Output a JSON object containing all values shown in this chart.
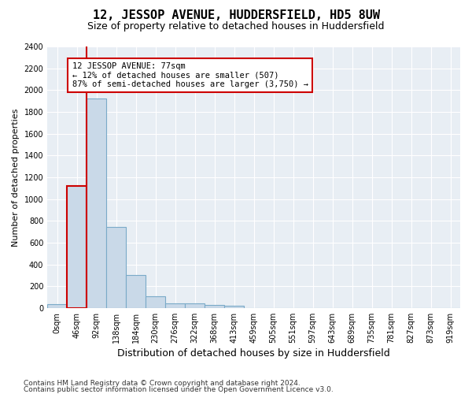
{
  "title": "12, JESSOP AVENUE, HUDDERSFIELD, HD5 8UW",
  "subtitle": "Size of property relative to detached houses in Huddersfield",
  "xlabel": "Distribution of detached houses by size in Huddersfield",
  "ylabel": "Number of detached properties",
  "footer_line1": "Contains HM Land Registry data © Crown copyright and database right 2024.",
  "footer_line2": "Contains public sector information licensed under the Open Government Licence v3.0.",
  "bin_labels": [
    "0sqm",
    "46sqm",
    "92sqm",
    "138sqm",
    "184sqm",
    "230sqm",
    "276sqm",
    "322sqm",
    "368sqm",
    "413sqm",
    "459sqm",
    "505sqm",
    "551sqm",
    "597sqm",
    "643sqm",
    "689sqm",
    "735sqm",
    "781sqm",
    "827sqm",
    "873sqm",
    "919sqm"
  ],
  "bar_values": [
    35,
    1120,
    1920,
    745,
    300,
    105,
    45,
    40,
    25,
    20,
    0,
    0,
    0,
    0,
    0,
    0,
    0,
    0,
    0,
    0,
    0
  ],
  "bar_color": "#c9d9e8",
  "bar_edge_color": "#7aaac8",
  "highlight_bar_index": 1,
  "highlight_edge_color": "#cc0000",
  "annotation_text": "12 JESSOP AVENUE: 77sqm\n← 12% of detached houses are smaller (507)\n87% of semi-detached houses are larger (3,750) →",
  "annotation_box_edge": "#cc0000",
  "ylim": [
    0,
    2400
  ],
  "yticks": [
    0,
    200,
    400,
    600,
    800,
    1000,
    1200,
    1400,
    1600,
    1800,
    2000,
    2200,
    2400
  ],
  "bg_color": "#e8eef4",
  "grid_color": "#ffffff",
  "title_fontsize": 11,
  "subtitle_fontsize": 9,
  "xlabel_fontsize": 9,
  "ylabel_fontsize": 8,
  "tick_fontsize": 7,
  "annotation_fontsize": 7.5,
  "footer_fontsize": 6.5
}
